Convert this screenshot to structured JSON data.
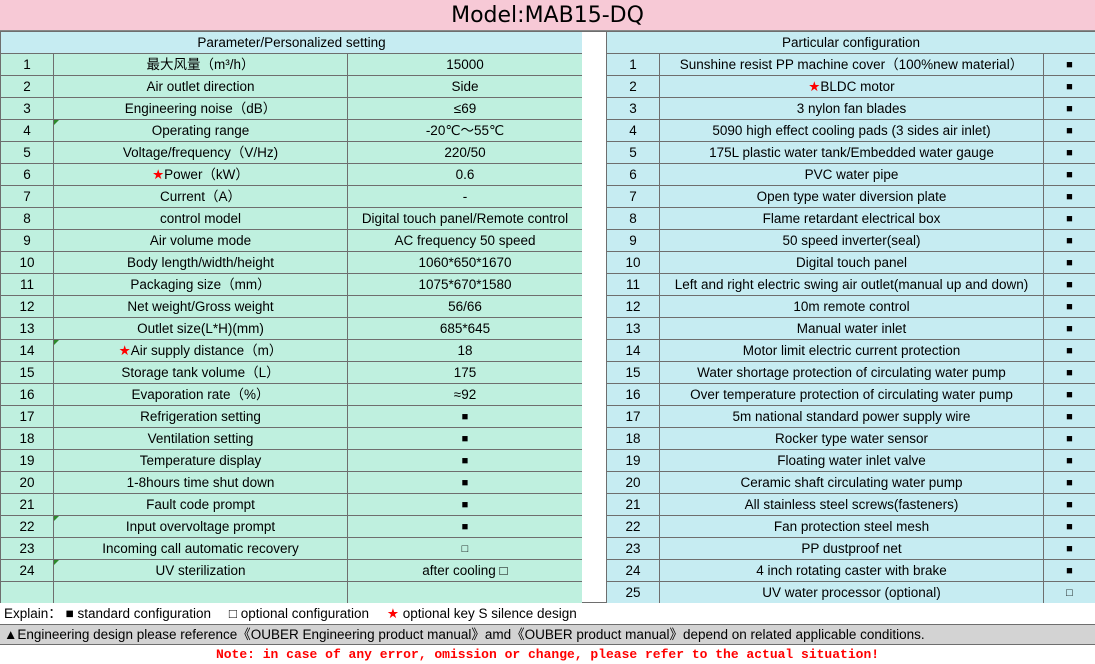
{
  "title": "Model:MAB15-DQ",
  "left_header": "Parameter/Personalized setting",
  "right_header": "Particular configuration",
  "left_rows": [
    {
      "no": "1",
      "label": "最大风量（m³/h）",
      "value": "15000"
    },
    {
      "no": "2",
      "label": "Air outlet direction",
      "value": "Side"
    },
    {
      "no": "3",
      "label": "Engineering noise（dB）",
      "value": "≤69"
    },
    {
      "no": "4",
      "label": "Operating range",
      "value": "-20℃～55℃"
    },
    {
      "no": "5",
      "label": "Voltage/frequency（V/Hz)",
      "value": "220/50"
    },
    {
      "no": "6",
      "label": "Power（kW）",
      "value": "0.6",
      "star": "★"
    },
    {
      "no": "7",
      "label": "Current（A）",
      "value": "-"
    },
    {
      "no": "8",
      "label": "control model",
      "value": "Digital touch panel/Remote control"
    },
    {
      "no": "9",
      "label": "Air volume mode",
      "value": "AC frequency 50 speed"
    },
    {
      "no": "10",
      "label": "Body length/width/height",
      "value": "1060*650*1670"
    },
    {
      "no": "11",
      "label": "Packaging size（mm）",
      "value": "1075*670*1580"
    },
    {
      "no": "12",
      "label": "Net weight/Gross weight",
      "value": "56/66"
    },
    {
      "no": "13",
      "label": "Outlet size(L*H)(mm)",
      "value": "685*645"
    },
    {
      "no": "14",
      "label": "Air supply distance（m）",
      "value": "18",
      "star": "★"
    },
    {
      "no": "15",
      "label": "Storage tank volume（L）",
      "value": "175"
    },
    {
      "no": "16",
      "label": "Evaporation rate（%）",
      "value": "≈92"
    },
    {
      "no": "17",
      "label": "Refrigeration setting",
      "value": "■"
    },
    {
      "no": "18",
      "label": "Ventilation setting",
      "value": "■"
    },
    {
      "no": "19",
      "label": "Temperature display",
      "value": "■"
    },
    {
      "no": "20",
      "label": "1-8hours time shut down",
      "value": "■"
    },
    {
      "no": "21",
      "label": "Fault code prompt",
      "value": "■"
    },
    {
      "no": "22",
      "label": "Input overvoltage prompt",
      "value": "■"
    },
    {
      "no": "23",
      "label": "Incoming call automatic recovery",
      "value": "□"
    },
    {
      "no": "24",
      "label": "UV sterilization",
      "value": "after cooling □"
    },
    {
      "no": "",
      "label": "",
      "value": ""
    }
  ],
  "right_rows": [
    {
      "no": "1",
      "label": "Sunshine resist PP machine cover（100%new material）",
      "mark": "■"
    },
    {
      "no": "2",
      "label": "BLDC motor",
      "mark": "■",
      "star": "★"
    },
    {
      "no": "3",
      "label": "3 nylon fan blades",
      "mark": "■"
    },
    {
      "no": "4",
      "label": "5090 high effect cooling pads (3 sides air inlet)",
      "mark": "■"
    },
    {
      "no": "5",
      "label": "175L plastic water tank/Embedded water gauge",
      "mark": "■"
    },
    {
      "no": "6",
      "label": "PVC water pipe",
      "mark": "■"
    },
    {
      "no": "7",
      "label": "Open type water diversion plate",
      "mark": "■"
    },
    {
      "no": "8",
      "label": "Flame retardant electrical box",
      "mark": "■"
    },
    {
      "no": "9",
      "label": "50 speed inverter(seal)",
      "mark": "■"
    },
    {
      "no": "10",
      "label": "Digital touch panel",
      "mark": "■"
    },
    {
      "no": "11",
      "label": "Left and right electric swing air outlet(manual up and down)",
      "mark": "■"
    },
    {
      "no": "12",
      "label": "10m remote control",
      "mark": "■"
    },
    {
      "no": "13",
      "label": "Manual water inlet",
      "mark": "■"
    },
    {
      "no": "14",
      "label": "Motor limit electric current protection",
      "mark": "■"
    },
    {
      "no": "15",
      "label": "Water shortage protection of circulating water pump",
      "mark": "■"
    },
    {
      "no": "16",
      "label": "Over temperature protection of circulating water pump",
      "mark": "■"
    },
    {
      "no": "17",
      "label": "5m national standard power supply wire",
      "mark": "■"
    },
    {
      "no": "18",
      "label": "Rocker type water sensor",
      "mark": "■"
    },
    {
      "no": "19",
      "label": "Floating water inlet valve",
      "mark": "■"
    },
    {
      "no": "20",
      "label": "Ceramic shaft circulating water pump",
      "mark": "■"
    },
    {
      "no": "21",
      "label": "All stainless steel screws(fasteners)",
      "mark": "■"
    },
    {
      "no": "22",
      "label": "Fan protection steel mesh",
      "mark": "■"
    },
    {
      "no": "23",
      "label": "PP dustproof net",
      "mark": "■"
    },
    {
      "no": "24",
      "label": "4 inch rotating caster with brake",
      "mark": "■"
    },
    {
      "no": "25",
      "label": "UV water processor (optional)",
      "mark": "□"
    }
  ],
  "explain": {
    "prefix": "Explain：",
    "standard": "■ standard configuration",
    "optional": "□ optional configuration",
    "star": "★",
    "silence": "optional key S silence design"
  },
  "design_note": "▲Engineering design please reference《OUBER Engineering product manual》amd《OUBER product manual》depend on related applicable conditions.",
  "bottom_note": "Note: in case of any error, omission or change, please refer to the actual situation!",
  "colors": {
    "title_bg": "#f7c9d6",
    "left_row_bg": "#bff0df",
    "right_row_bg": "#c6ecf2",
    "star": "#ff0000",
    "design_bg": "#d3d3d3"
  }
}
